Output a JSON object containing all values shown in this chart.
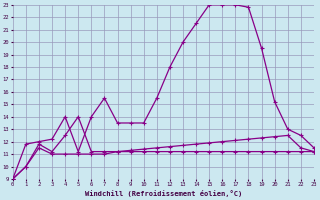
{
  "xlabel": "Windchill (Refroidissement éolien,°C)",
  "bg_color": "#cce8f0",
  "grid_color": "#9999bb",
  "line_color": "#880088",
  "xlim": [
    0,
    23
  ],
  "ylim": [
    9,
    23
  ],
  "xticks": [
    0,
    1,
    2,
    3,
    4,
    5,
    6,
    7,
    8,
    9,
    10,
    11,
    12,
    13,
    14,
    15,
    16,
    17,
    18,
    19,
    20,
    21,
    22,
    23
  ],
  "yticks": [
    9,
    10,
    11,
    12,
    13,
    14,
    15,
    16,
    17,
    18,
    19,
    20,
    21,
    22,
    23
  ],
  "series1_x": [
    0,
    1,
    2,
    3,
    4,
    5,
    6,
    7,
    8,
    9,
    10,
    11,
    12,
    13,
    14,
    15,
    16,
    17,
    18,
    19,
    20,
    21,
    22,
    23
  ],
  "series1_y": [
    9.0,
    11.8,
    12.0,
    12.2,
    14.0,
    11.2,
    14.0,
    15.5,
    13.5,
    13.5,
    13.5,
    15.5,
    18.0,
    20.0,
    21.5,
    23.0,
    23.0,
    23.0,
    22.8,
    19.5,
    15.2,
    13.0,
    12.5,
    11.5
  ],
  "series2_x": [
    0,
    1,
    2,
    3,
    4,
    5,
    6,
    7,
    8,
    9,
    10,
    11,
    12,
    13,
    14,
    15,
    16,
    17,
    18,
    19,
    20,
    21,
    22,
    23
  ],
  "series2_y": [
    9.0,
    10.0,
    11.8,
    11.2,
    12.5,
    14.0,
    11.2,
    11.2,
    11.2,
    11.2,
    11.2,
    11.2,
    11.2,
    11.2,
    11.2,
    11.2,
    11.2,
    11.2,
    11.2,
    11.2,
    11.2,
    11.2,
    11.2,
    11.2
  ],
  "series3_x": [
    0,
    1,
    2,
    3,
    4,
    5,
    6,
    7,
    8,
    9,
    10,
    11,
    12,
    13,
    14,
    15,
    16,
    17,
    18,
    19,
    20,
    21,
    22,
    23
  ],
  "series3_y": [
    9.0,
    10.0,
    11.5,
    11.0,
    11.0,
    11.0,
    11.0,
    11.0,
    11.2,
    11.3,
    11.4,
    11.5,
    11.6,
    11.7,
    11.8,
    11.9,
    12.0,
    12.1,
    12.2,
    12.3,
    12.4,
    12.5,
    11.5,
    11.2
  ]
}
